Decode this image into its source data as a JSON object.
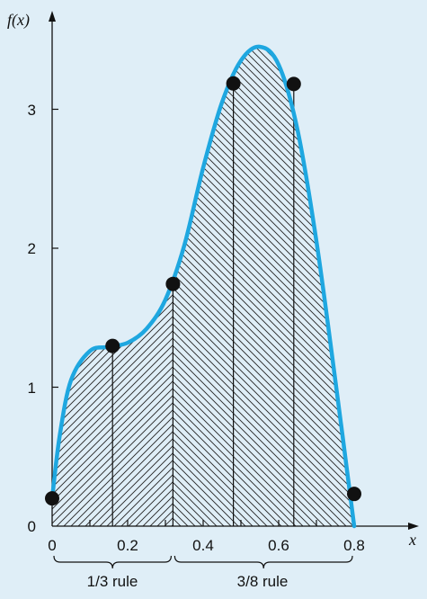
{
  "chart_data": {
    "type": "line",
    "title": "",
    "xlabel": "x",
    "ylabel": "f(x)",
    "xlim": [
      0,
      0.8
    ],
    "ylim": [
      0,
      3.5
    ],
    "x_ticks": [
      "0",
      "0.2",
      "0.4",
      "0.6",
      "0.8"
    ],
    "y_ticks": [
      "0",
      "1",
      "2",
      "3"
    ],
    "series": [
      {
        "type": "curve",
        "x": [
          0,
          0.02,
          0.05,
          0.1,
          0.15,
          0.2,
          0.25,
          0.3,
          0.35,
          0.4,
          0.45,
          0.5,
          0.55,
          0.6,
          0.65,
          0.7,
          0.75,
          0.8
        ],
        "y": [
          0.2,
          0.65,
          1.05,
          1.26,
          1.29,
          1.32,
          1.42,
          1.63,
          2.02,
          2.58,
          3.05,
          3.35,
          3.45,
          3.32,
          2.85,
          2.05,
          1.05,
          0.0
        ]
      },
      {
        "type": "points",
        "x": [
          0,
          0.16,
          0.32,
          0.48,
          0.64,
          0.8
        ],
        "y": [
          0.2,
          1.297,
          1.743,
          3.186,
          3.182,
          0.232
        ]
      }
    ],
    "annotations": [
      {
        "label": "1/3 rule",
        "x_from": 0,
        "x_to": 0.32
      },
      {
        "label": "3/8 rule",
        "x_from": 0.32,
        "x_to": 0.8
      }
    ]
  }
}
